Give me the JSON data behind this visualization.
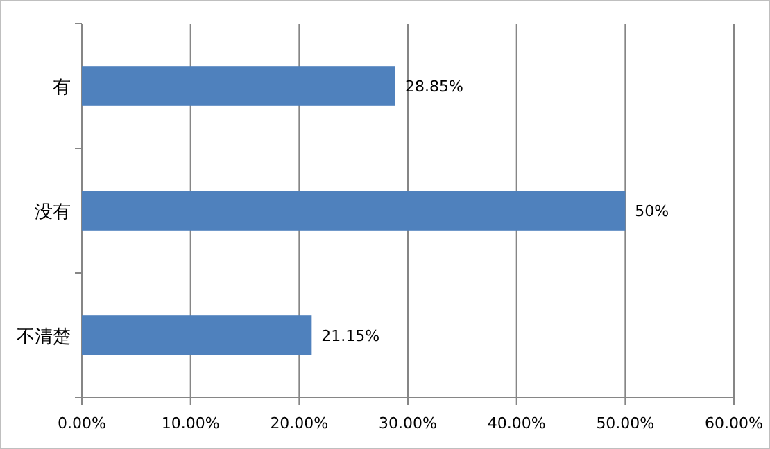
{
  "chart_data": {
    "type": "bar",
    "orientation": "horizontal",
    "categories": [
      "有",
      "没有",
      "不清楚"
    ],
    "values": [
      28.85,
      50,
      21.15
    ],
    "color": "#4f81bd",
    "value_labels": [
      "28.85%",
      "50%",
      "21.15%"
    ],
    "xlim": [
      0,
      60
    ],
    "xticks": [
      {
        "value": 0,
        "label": "0.00%"
      },
      {
        "value": 10,
        "label": "10.00%"
      },
      {
        "value": 20,
        "label": "20.00%"
      },
      {
        "value": 30,
        "label": "30.00%"
      },
      {
        "value": 40,
        "label": "40.00%"
      },
      {
        "value": 50,
        "label": "50.00%"
      },
      {
        "value": 60,
        "label": "60.00%"
      }
    ],
    "grid": "x"
  }
}
